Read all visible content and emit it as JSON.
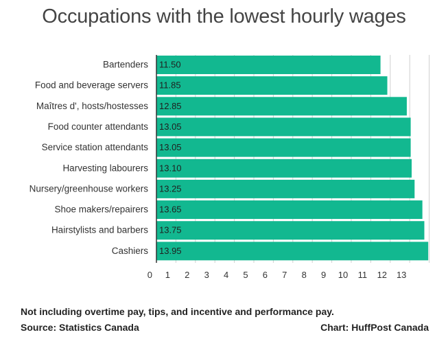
{
  "chart_data": {
    "type": "bar",
    "orientation": "horizontal",
    "title": "Occupations with the lowest hourly wages",
    "categories": [
      "Bartenders",
      "Food and beverage servers",
      "Maîtres d', hosts/hostesses",
      "Food counter attendants",
      "Service station attendants",
      "Harvesting labourers",
      "Nursery/greenhouse workers",
      "Shoe makers/repairers",
      "Hairstylists and barbers",
      "Cashiers"
    ],
    "values": [
      11.5,
      11.85,
      12.85,
      13.05,
      13.05,
      13.1,
      13.25,
      13.65,
      13.75,
      13.95
    ],
    "value_labels": [
      "11.50",
      "11.85",
      "12.85",
      "13.05",
      "13.05",
      "13.10",
      "13.25",
      "13.65",
      "13.75",
      "13.95"
    ],
    "x_ticks": [
      "0",
      "1",
      "2",
      "3",
      "4",
      "5",
      "6",
      "7",
      "8",
      "9",
      "10",
      "11",
      "12",
      "13"
    ],
    "xlim": [
      0,
      14
    ],
    "xlabel": "",
    "ylabel": "",
    "grid": "vertical",
    "legend": "none",
    "bar_color": "#12b890"
  },
  "footer": {
    "note": "Not including  overtime pay, tips, and incentive and performance pay.",
    "source": "Source: Statistics Canada",
    "credit": "Chart: HuffPost Canada"
  }
}
